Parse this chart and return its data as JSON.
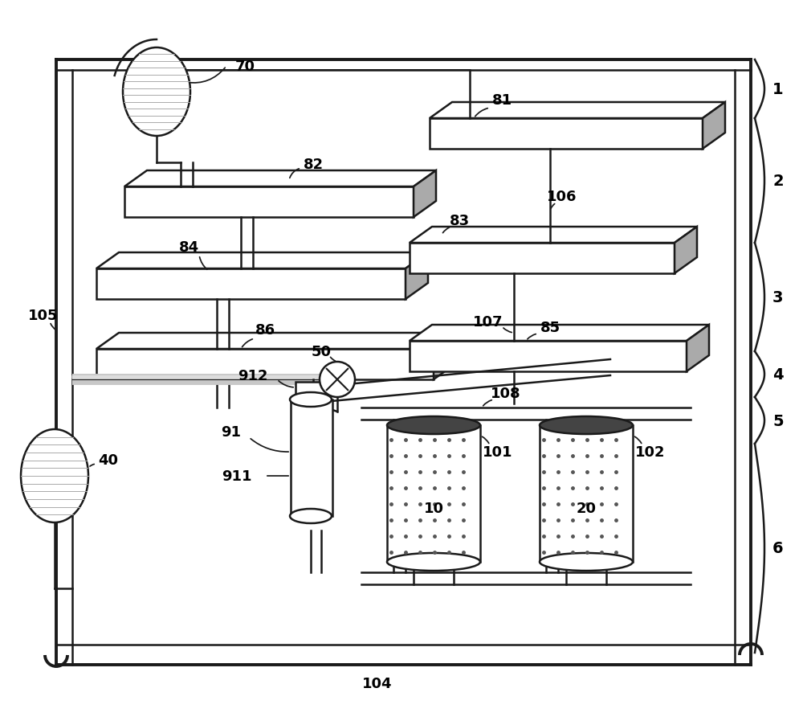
{
  "figsize": [
    10.0,
    9.03
  ],
  "dpi": 100,
  "lc": "#1a1a1a",
  "lw": 1.8,
  "blw": 2.8,
  "shelf_side_color": "#aaaaaa",
  "cyl_top_color": "#444444",
  "cyl_dot_color": "#555555",
  "hatch_color": "#999999",
  "gray_pipe_color": "#c0c0c0"
}
